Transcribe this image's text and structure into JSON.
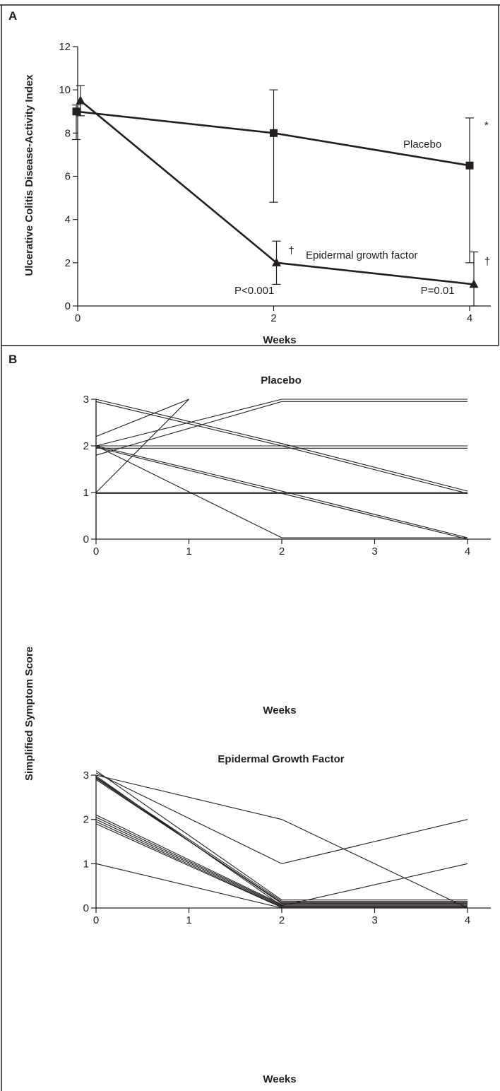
{
  "chart_data": [
    {
      "panel": "A",
      "type": "line",
      "title": "",
      "xlabel": "Weeks",
      "ylabel": "Ulcerative Colitis Disease-Activity Index",
      "xlim": [
        0,
        4
      ],
      "ylim": [
        0,
        12
      ],
      "x_ticks": [
        0,
        2,
        4
      ],
      "y_ticks": [
        0,
        2,
        4,
        6,
        8,
        10,
        12
      ],
      "grid": false,
      "series": [
        {
          "name": "Placebo",
          "marker": "square",
          "x": [
            0,
            2,
            4
          ],
          "y": [
            9,
            8,
            6.5
          ],
          "err_low": [
            7.7,
            4.8,
            2.0
          ],
          "err_high": [
            9.3,
            10.0,
            8.7
          ]
        },
        {
          "name": "Epidermal growth factor",
          "marker": "triangle",
          "x": [
            0,
            2,
            4
          ],
          "y": [
            9.5,
            2,
            1
          ],
          "err_low": [
            8.8,
            1.0,
            0
          ],
          "err_high": [
            10.2,
            3.0,
            2.5
          ]
        }
      ],
      "annotations": [
        {
          "text": "*",
          "x": 4.15,
          "y": 8.2
        },
        {
          "text": "†",
          "x": 2.15,
          "y": 2.4
        },
        {
          "text": "†",
          "x": 4.15,
          "y": 1.9
        },
        {
          "text": "P<0.001",
          "x": 1.6,
          "y": 0.55
        },
        {
          "text": "P=0.01",
          "x": 3.5,
          "y": 0.55
        }
      ]
    },
    {
      "panel": "B",
      "type": "line",
      "ylabel": "Simplified Symptom Score",
      "subplots": [
        {
          "title": "Placebo",
          "xlabel": "Weeks",
          "xlim": [
            0,
            4
          ],
          "ylim": [
            0,
            3
          ],
          "x_ticks": [
            0,
            1,
            2,
            3,
            4
          ],
          "y_ticks": [
            0,
            1,
            2,
            3
          ],
          "lines": [
            {
              "x": [
                0,
                1
              ],
              "y": [
                2.2,
                3
              ]
            },
            {
              "x": [
                0,
                1
              ],
              "y": [
                1.0,
                3
              ]
            },
            {
              "x": [
                0,
                2,
                4
              ],
              "y": [
                2.0,
                3.0,
                3.0
              ]
            },
            {
              "x": [
                0,
                2,
                4
              ],
              "y": [
                1.8,
                2.95,
                2.95
              ]
            },
            {
              "x": [
                0,
                2,
                4
              ],
              "y": [
                3.0,
                2.05,
                1.03
              ]
            },
            {
              "x": [
                0,
                2,
                4
              ],
              "y": [
                2.95,
                2.0,
                0.98
              ]
            },
            {
              "x": [
                0,
                2,
                4
              ],
              "y": [
                2.0,
                2.0,
                2.0
              ]
            },
            {
              "x": [
                0,
                2,
                4
              ],
              "y": [
                1.95,
                1.95,
                1.95
              ]
            },
            {
              "x": [
                0,
                2,
                4
              ],
              "y": [
                2.0,
                1.03,
                0.03
              ]
            },
            {
              "x": [
                0,
                2,
                4
              ],
              "y": [
                1.97,
                0.98,
                0
              ]
            },
            {
              "x": [
                0,
                2,
                4
              ],
              "y": [
                2.0,
                0.03,
                0.03
              ]
            },
            {
              "x": [
                0,
                2,
                4
              ],
              "y": [
                1.0,
                1.0,
                1.0
              ]
            },
            {
              "x": [
                0,
                4
              ],
              "y": [
                0.98,
                0.98
              ]
            },
            {
              "x": [
                0,
                0
              ],
              "y": [
                0,
                3
              ]
            }
          ]
        },
        {
          "title": "Epidermal Growth Factor",
          "xlabel": "Weeks",
          "xlim": [
            0,
            4
          ],
          "ylim": [
            0,
            3
          ],
          "x_ticks": [
            0,
            1,
            2,
            3,
            4
          ],
          "y_ticks": [
            0,
            1,
            2,
            3
          ],
          "lines": [
            {
              "x": [
                0,
                2,
                4
              ],
              "y": [
                3.0,
                2.0,
                0
              ]
            },
            {
              "x": [
                0,
                2,
                4
              ],
              "y": [
                3.05,
                1.0,
                2.0
              ]
            },
            {
              "x": [
                0,
                2,
                4
              ],
              "y": [
                2.98,
                0.05,
                1.0
              ]
            },
            {
              "x": [
                0,
                2,
                4
              ],
              "y": [
                3.1,
                0.18,
                0.18
              ]
            },
            {
              "x": [
                0,
                2,
                4
              ],
              "y": [
                2.95,
                0.15,
                0.15
              ]
            },
            {
              "x": [
                0,
                2,
                4
              ],
              "y": [
                2.9,
                0.12,
                0.12
              ]
            },
            {
              "x": [
                0,
                2,
                4
              ],
              "y": [
                2.93,
                0.1,
                0.1
              ]
            },
            {
              "x": [
                0,
                2,
                4
              ],
              "y": [
                2.1,
                0.08,
                0.08
              ]
            },
            {
              "x": [
                0,
                2,
                4
              ],
              "y": [
                2.05,
                0.06,
                0.06
              ]
            },
            {
              "x": [
                0,
                2,
                4
              ],
              "y": [
                2.0,
                0.04,
                0.04
              ]
            },
            {
              "x": [
                0,
                2,
                4
              ],
              "y": [
                1.95,
                0.02,
                0.02
              ]
            },
            {
              "x": [
                0,
                2,
                4
              ],
              "y": [
                1.9,
                0.01,
                0.01
              ]
            },
            {
              "x": [
                0,
                2,
                4
              ],
              "y": [
                1.0,
                0.0,
                0.0
              ]
            }
          ]
        }
      ]
    }
  ]
}
